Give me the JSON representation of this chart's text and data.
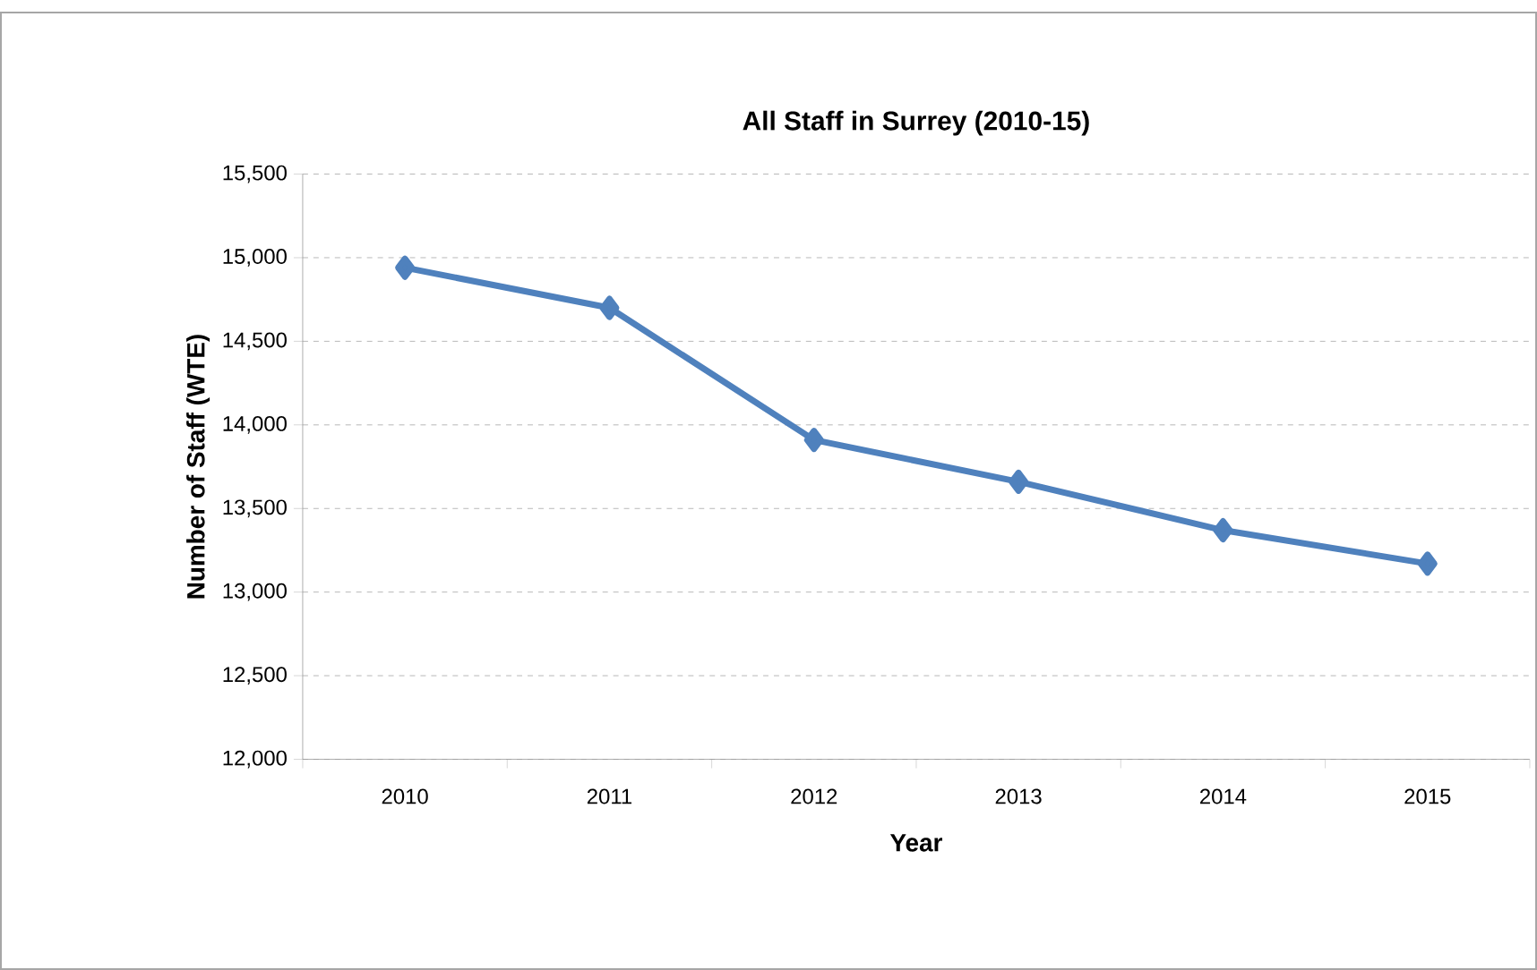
{
  "chart_data": {
    "type": "line",
    "title": "All Staff in Surrey (2010-15)",
    "xlabel": "Year",
    "ylabel": "Number of Staff (WTE)",
    "categories": [
      "2010",
      "2011",
      "2012",
      "2013",
      "2014",
      "2015"
    ],
    "series": [
      {
        "color": "#4f81bd",
        "values": [
          14940,
          14700,
          13910,
          13660,
          13370,
          13170
        ]
      }
    ],
    "ylim": [
      12000,
      15500
    ],
    "yticks": [
      {
        "value": 12000,
        "label": "12,000"
      },
      {
        "value": 12500,
        "label": "12,500"
      },
      {
        "value": 13000,
        "label": "13,000"
      },
      {
        "value": 13500,
        "label": "13,500"
      },
      {
        "value": 14000,
        "label": "14,000"
      },
      {
        "value": 14500,
        "label": "14,500"
      },
      {
        "value": 15000,
        "label": "15,000"
      },
      {
        "value": 15500,
        "label": "15,500"
      }
    ],
    "grid": "y",
    "marker": "diamond",
    "line_style": "solid"
  }
}
